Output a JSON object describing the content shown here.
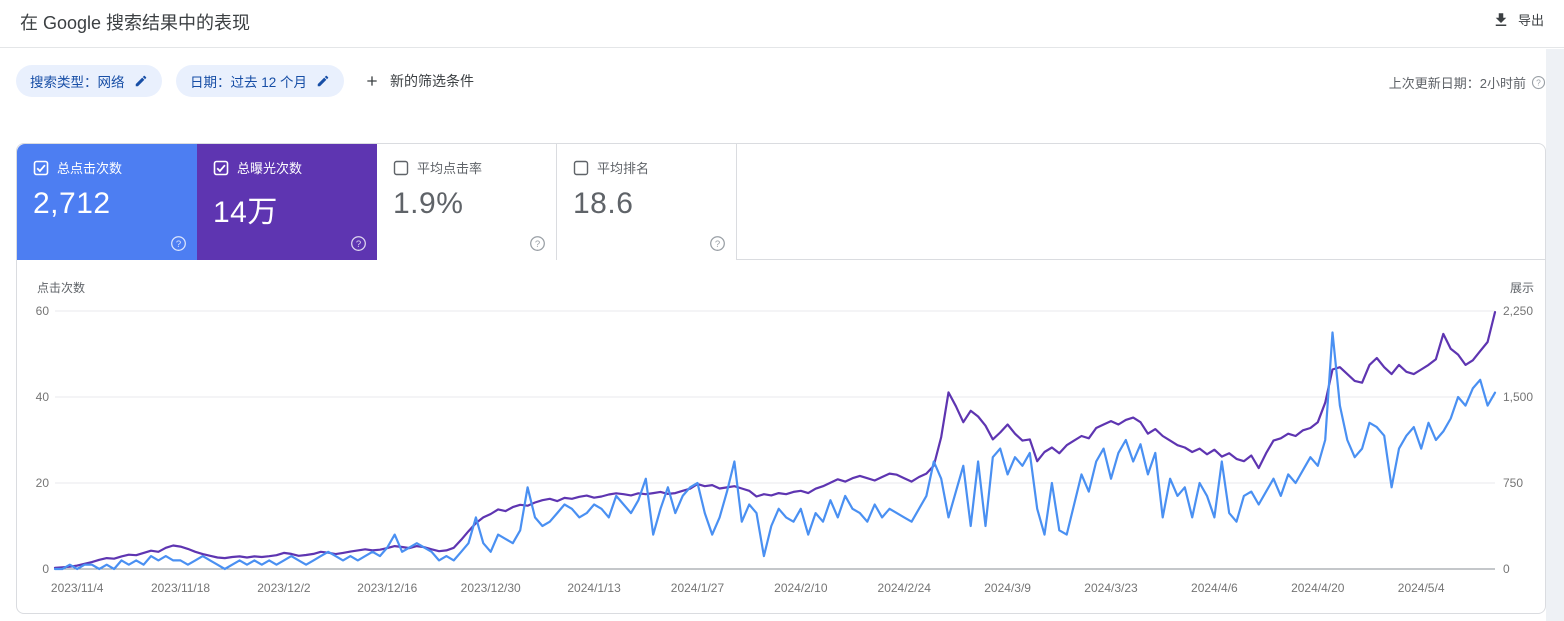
{
  "header": {
    "title": "在 Google 搜索结果中的表现",
    "export_label": "导出"
  },
  "filters": {
    "chips": [
      {
        "label": "搜索类型：网络"
      },
      {
        "label": "日期：过去 12 个月"
      }
    ],
    "add_filter_label": "新的筛选条件",
    "last_updated": "上次更新日期：2小时前"
  },
  "metrics": [
    {
      "label": "总点击次数",
      "value": "2,712",
      "checked": true,
      "color": "#4d7ef2"
    },
    {
      "label": "总曝光次数",
      "value": "14万",
      "checked": true,
      "color": "#5e35b1"
    },
    {
      "label": "平均点击率",
      "value": "1.9%",
      "checked": false,
      "color": "#ffffff"
    },
    {
      "label": "平均排名",
      "value": "18.6",
      "checked": false,
      "color": "#ffffff"
    }
  ],
  "chart_data": {
    "type": "line",
    "grid": true,
    "left_axis": {
      "label": "点击次数",
      "max": 60,
      "ticks": [
        0,
        20,
        40,
        60
      ]
    },
    "right_axis": {
      "label": "展示",
      "max": 2250,
      "ticks": [
        "0",
        "750",
        "1,500",
        "2,250"
      ]
    },
    "x_tick_labels": [
      "2023/11/4",
      "2023/11/18",
      "2023/12/2",
      "2023/12/16",
      "2023/12/30",
      "2024/1/13",
      "2024/1/27",
      "2024/2/10",
      "2024/2/24",
      "2024/3/9",
      "2024/3/23",
      "2024/4/6",
      "2024/4/20",
      "2024/5/4"
    ],
    "x_tick_day_indices": [
      3,
      17,
      31,
      45,
      59,
      73,
      87,
      101,
      115,
      129,
      143,
      157,
      171,
      185
    ],
    "x_range_days": 196,
    "series": [
      {
        "name": "展示",
        "axis": "right",
        "color": "#5e35b1",
        "values": [
          10,
          15,
          20,
          30,
          45,
          60,
          80,
          95,
          90,
          110,
          125,
          120,
          140,
          160,
          150,
          185,
          205,
          195,
          175,
          150,
          130,
          115,
          100,
          95,
          105,
          110,
          100,
          110,
          105,
          112,
          120,
          140,
          132,
          115,
          122,
          132,
          150,
          142,
          130,
          140,
          152,
          162,
          172,
          162,
          168,
          182,
          200,
          192,
          182,
          200,
          190,
          172,
          155,
          162,
          185,
          255,
          330,
          400,
          450,
          480,
          520,
          505,
          540,
          560,
          552,
          580,
          600,
          612,
          592,
          620,
          612,
          630,
          640,
          622,
          632,
          650,
          660,
          652,
          642,
          660,
          652,
          662,
          672,
          655,
          662,
          682,
          700,
          740,
          722,
          732,
          702,
          712,
          722,
          702,
          682,
          632,
          652,
          642,
          662,
          652,
          672,
          682,
          662,
          700,
          722,
          752,
          782,
          762,
          792,
          812,
          792,
          772,
          802,
          832,
          822,
          792,
          762,
          802,
          832,
          902,
          1150,
          1540,
          1420,
          1280,
          1380,
          1330,
          1250,
          1130,
          1190,
          1260,
          1180,
          1120,
          1130,
          940,
          1020,
          1060,
          1010,
          1080,
          1120,
          1160,
          1140,
          1230,
          1260,
          1290,
          1260,
          1300,
          1320,
          1280,
          1180,
          1220,
          1160,
          1120,
          1080,
          1060,
          1020,
          1050,
          1000,
          1040,
          980,
          1010,
          960,
          940,
          990,
          880,
          1010,
          1120,
          1140,
          1180,
          1160,
          1210,
          1230,
          1280,
          1450,
          1740,
          1760,
          1700,
          1640,
          1625,
          1780,
          1840,
          1760,
          1700,
          1780,
          1720,
          1700,
          1740,
          1780,
          1830,
          2050,
          1920,
          1870,
          1780,
          1820,
          1900,
          1980,
          2240
        ]
      },
      {
        "name": "点击次数",
        "axis": "left",
        "color": "#4a90f2",
        "values": [
          0,
          0,
          1,
          0,
          1,
          1,
          0,
          1,
          0,
          2,
          1,
          2,
          1,
          3,
          2,
          3,
          2,
          2,
          1,
          2,
          3,
          2,
          1,
          0,
          1,
          2,
          1,
          2,
          1,
          2,
          1,
          2,
          3,
          2,
          1,
          2,
          3,
          4,
          3,
          2,
          3,
          2,
          3,
          4,
          3,
          5,
          8,
          4,
          5,
          6,
          5,
          4,
          2,
          3,
          2,
          4,
          6,
          12,
          6,
          4,
          8,
          7,
          6,
          9,
          19,
          12,
          10,
          11,
          13,
          15,
          14,
          12,
          13,
          15,
          14,
          12,
          17,
          15,
          13,
          16,
          21,
          8,
          14,
          19,
          13,
          17,
          19,
          20,
          13,
          8,
          12,
          18,
          25,
          11,
          15,
          13,
          3,
          10,
          14,
          12,
          11,
          14,
          8,
          13,
          11,
          16,
          12,
          17,
          14,
          13,
          11,
          15,
          12,
          14,
          13,
          12,
          11,
          14,
          17,
          25,
          21,
          12,
          18,
          24,
          10,
          25,
          10,
          26,
          28,
          22,
          26,
          24,
          27,
          14,
          8,
          20,
          9,
          8,
          15,
          22,
          18,
          25,
          28,
          21,
          27,
          30,
          25,
          29,
          22,
          27,
          12,
          21,
          17,
          19,
          12,
          20,
          17,
          12,
          25,
          13,
          11,
          17,
          18,
          15,
          18,
          21,
          17,
          22,
          20,
          23,
          26,
          24,
          30,
          55,
          38,
          30,
          26,
          28,
          34,
          33,
          31,
          19,
          28,
          31,
          33,
          28,
          34,
          30,
          32,
          35,
          40,
          38,
          42,
          44,
          38,
          41
        ]
      }
    ]
  }
}
